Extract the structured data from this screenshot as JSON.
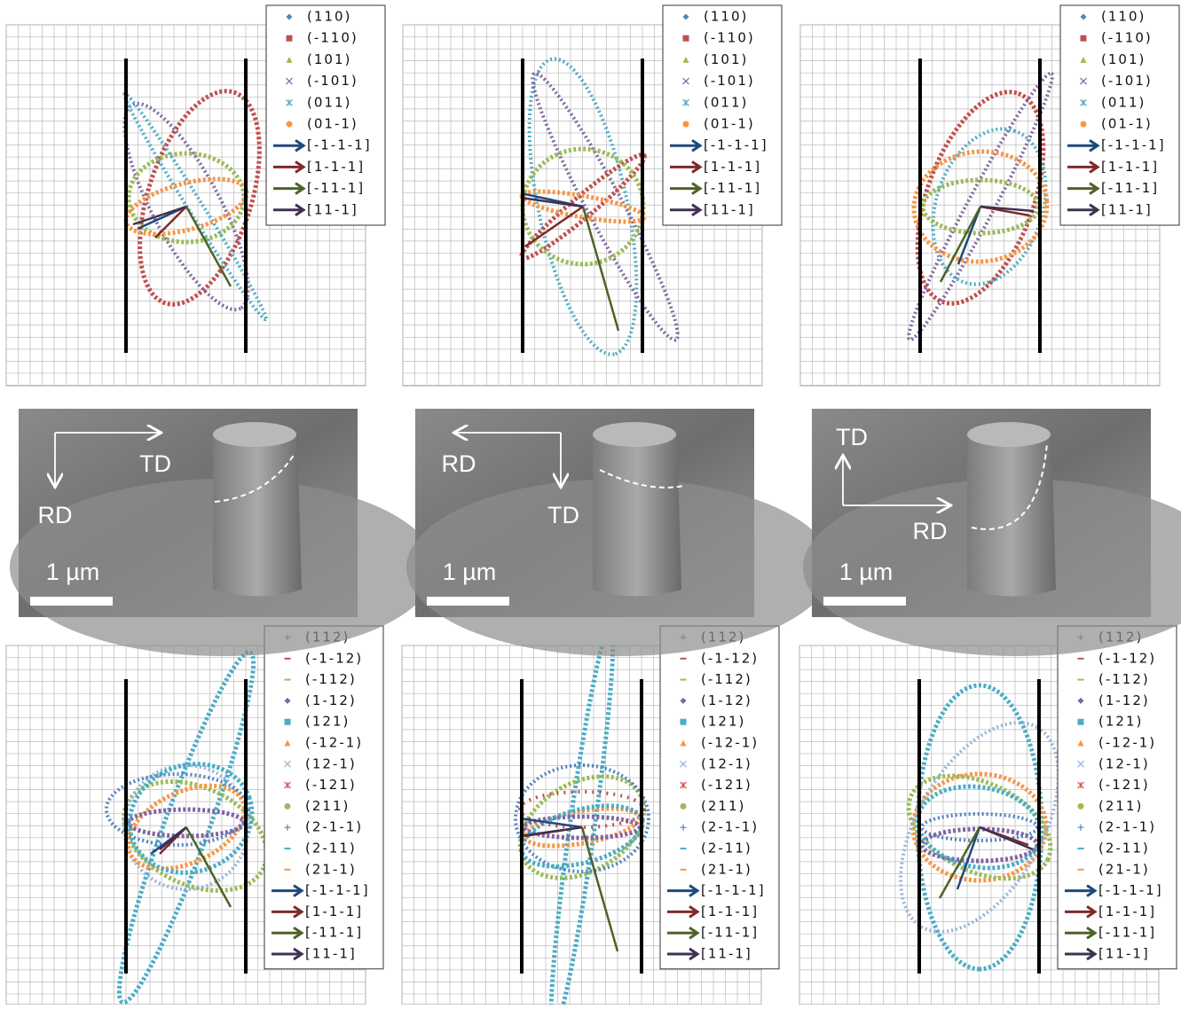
{
  "top_row": [
    {
      "legend": [
        "(110)",
        "(-110)",
        "(101)",
        "(-101)",
        "(011)",
        "(01-1)",
        "[-1-1-1]",
        "[1-1-1]",
        "[-11-1]",
        "[11-1]"
      ]
    },
    {
      "legend": [
        "(110)",
        "(-110)",
        "(101)",
        "(-101)",
        "(011)",
        "(01-1)",
        "[-1-1-1]",
        "[1-1-1]",
        "[-11-1]",
        "[11-1]"
      ]
    },
    {
      "legend": [
        "(110)",
        "(-110)",
        "(101)",
        "(-101)",
        "(011)",
        "(01-1)",
        "[-1-1-1]",
        "[1-1-1]",
        "[-11-1]",
        "[11-1]"
      ]
    }
  ],
  "sem_row": [
    {
      "first_direction": "TD",
      "second_direction": "RD",
      "scale_bar": "1 µm"
    },
    {
      "first_direction": "RD",
      "second_direction": "TD",
      "scale_bar": "1 µm"
    },
    {
      "first_direction": "TD",
      "second_direction": "RD",
      "scale_bar": "1 µm"
    }
  ],
  "bottom_row": [
    {
      "legend": [
        "(112)",
        "(-1-12)",
        "(-112)",
        "(1-12)",
        "(121)",
        "(-12-1)",
        "(12-1)",
        "(-121)",
        "(211)",
        "(2-1-1)",
        "(2-11)",
        "(21-1)",
        "[-1-1-1]",
        "[1-1-1]",
        "[-11-1]",
        "[11-1]"
      ]
    },
    {
      "legend": [
        "(112)",
        "(-1-12)",
        "(-112)",
        "(1-12)",
        "(121)",
        "(-12-1)",
        "(12-1)",
        "(-121)",
        "(211)",
        "(2-1-1)",
        "(2-11)",
        "(21-1)",
        "[-1-1-1]",
        "[1-1-1]",
        "[-11-1]",
        "[11-1]"
      ]
    },
    {
      "legend": [
        "(112)",
        "(-1-12)",
        "(-112)",
        "(1-12)",
        "(121)",
        "(-12-1)",
        "(12-1)",
        "(-121)",
        "(211)",
        "(2-1-1)",
        "(2-11)",
        "(21-1)",
        "[-1-1-1]",
        "[1-1-1]",
        "[-11-1]",
        "[11-1]"
      ]
    }
  ]
}
